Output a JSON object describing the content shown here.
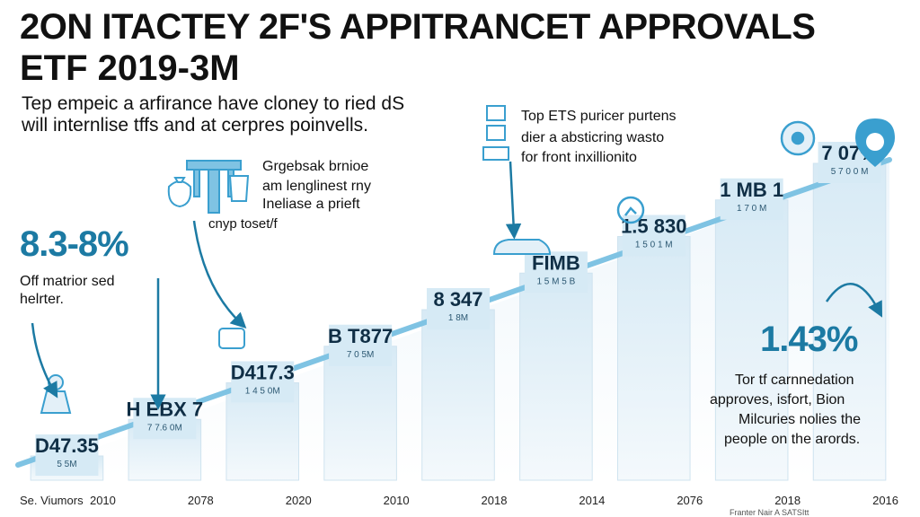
{
  "header": {
    "title": "2ON ITACTEY 2F'S APPITRANCET APPROVALS",
    "subtitle": "ETF 2019-3M"
  },
  "intro": {
    "line1": "Tep empeic a arfirance have cloney to ried dS",
    "line2": "will internlise tffs and at cerpres poinvells."
  },
  "left_callout": {
    "value": "8.3-8%",
    "line1": "Off matrior sed",
    "line2": "helrter."
  },
  "center_callout": {
    "line1": "Grgebsak brnioe",
    "line2": "am lenglinest rny",
    "line3": "Ineliase a prieft",
    "line4": "cnyp toset/f"
  },
  "top_callout": {
    "line1": "Top ETS puricer purtens",
    "line2": "dier a absticring wasto",
    "line3": "for front inxillionito"
  },
  "right_callout": {
    "value": "1.43%",
    "line1": "Tor tf carnnedation",
    "line2": "approves, isfort, Bion",
    "line3": "Milcuries nolies the",
    "line4": "people on the arords."
  },
  "footer": {
    "left": "Se. Viumors",
    "right": "Franter    Nair A SATSItt"
  },
  "colors": {
    "accent": "#3a9fcf",
    "bar_fill": "#e3f0f8",
    "label_box": "#d6eaf5",
    "big_text": "#1c7aa3"
  },
  "icons": [
    "money-bag-icon",
    "gavel-icon",
    "hand-icon",
    "building-icon",
    "document-icon",
    "growth-icon",
    "cloud-location-icon",
    "shoe-icon"
  ],
  "chart_data": {
    "type": "bar",
    "categories": [
      "2010",
      "2078",
      "2020",
      "2010",
      "2018",
      "2014",
      "2076",
      "2018",
      "2016"
    ],
    "values": [
      1,
      2,
      3,
      4,
      5,
      6,
      7,
      8,
      9
    ],
    "labels": [
      "D47.35",
      "H EBX 7",
      "D417.3",
      "B T877",
      "8 347",
      "FIMB",
      "1.5 830",
      "1 MB 1",
      "7 07%"
    ],
    "sublabels": [
      "5 5M",
      "7 7.6 0M",
      "1 4 5 0M",
      "7 0 5M",
      "1 8M",
      "1 5 M 5 B",
      "1 5 0 1 M",
      "1 7 0 M",
      "5 7 0 0 M"
    ],
    "trend": "rising"
  }
}
